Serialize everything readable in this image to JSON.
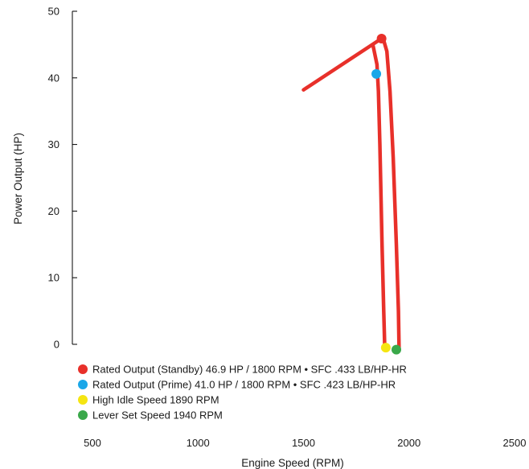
{
  "chart_data": {
    "type": "line",
    "xlabel": "Engine Speed (RPM)",
    "ylabel": "Power Output (HP)",
    "xlim": [
      500,
      2500
    ],
    "ylim": [
      0,
      50
    ],
    "x_ticks": [
      500,
      1000,
      1500,
      2000,
      2500
    ],
    "y_ticks": [
      0,
      10,
      20,
      30,
      40,
      50
    ],
    "grid": false,
    "legend_position": "bottom-left",
    "series": [
      {
        "color": "#e8302a",
        "points": [
          [
            1500,
            38.2
          ],
          [
            1870,
            45.9
          ],
          [
            1880,
            45.6
          ],
          [
            1895,
            44.0
          ],
          [
            1910,
            38.0
          ],
          [
            1925,
            28.0
          ],
          [
            1940,
            15.0
          ],
          [
            1950,
            5.0
          ],
          [
            1953,
            -0.8
          ]
        ]
      },
      {
        "color": "#e8302a",
        "points": [
          [
            1830,
            44.8
          ],
          [
            1848,
            42.0
          ],
          [
            1855,
            38.0
          ],
          [
            1862,
            30.0
          ],
          [
            1872,
            15.0
          ],
          [
            1880,
            5.0
          ],
          [
            1885,
            -0.6
          ]
        ]
      }
    ],
    "markers": [
      {
        "x": 1870,
        "y": 45.9,
        "color": "#e8302a",
        "label": "Rated Output (Standby) 46.9 HP / 1800 RPM • SFC .433 LB/HP-HR"
      },
      {
        "x": 1845,
        "y": 40.6,
        "color": "#1ba7e8",
        "label": "Rated Output (Prime) 41.0 HP / 1800 RPM • SFC .423 LB/HP-HR"
      },
      {
        "x": 1890,
        "y": -0.5,
        "color": "#f5e512",
        "label": "High Idle Speed 1890 RPM"
      },
      {
        "x": 1940,
        "y": -0.8,
        "color": "#3aa84a",
        "label": "Lever Set Speed 1940 RPM"
      }
    ]
  }
}
